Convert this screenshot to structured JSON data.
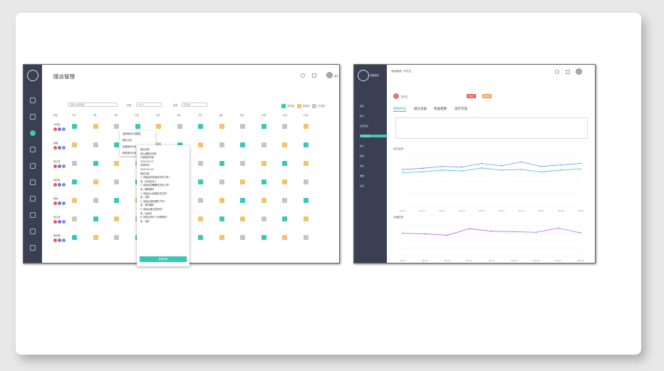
{
  "screen1": {
    "title": "随访管理",
    "search_placeholder": "请输入患者姓名",
    "filter1_label": "时间",
    "filter1_value": "2019",
    "filter2_label": "状态",
    "filter2_value": "已完成",
    "legend": [
      {
        "label": "未开始",
        "color": "#3cc7b3"
      },
      {
        "label": "未完成",
        "color": "#f4c26b"
      },
      {
        "label": "已完成",
        "color": "#c5c5c5"
      }
    ],
    "user": "医生",
    "col_header": "姓名",
    "months": [
      "1月",
      "2月",
      "3月",
      "4月",
      "5月",
      "6月",
      "7月",
      "8月",
      "9月",
      "10月",
      "11月",
      "12月"
    ],
    "patients": [
      "乔佳航",
      "唐媛",
      "唐立新",
      "唐林森",
      "唐媛",
      "唐立新",
      "唐林鹏"
    ],
    "menu": [
      "选择随访计划模板",
      "随访计划",
      "患者随访计划",
      "新增随访计划"
    ],
    "popup": {
      "h1": "随访名称",
      "v1": "冠心病随访问卷",
      "h2": "计划随访时间",
      "v2": "2020-03-12",
      "h3": "完成时间",
      "v3": "2020-02-03",
      "h4": "随访内容",
      "qa": [
        "1. 您最近的饮食情况怎么样?",
        "答：情况还可以",
        "2. 您最近的睡眠情况怎么样?",
        "答：睡得很好",
        "3. 您最近心绞痛发作过吗?",
        "答：没有",
        "4. 您最近按时服药了吗?",
        "答：按时服药",
        "5. 您最近做过复查吗?",
        "答：还没有",
        "6. 您最近有什么不舒服吗?",
        "答：还好"
      ],
      "button": "查看详情"
    }
  },
  "screen2": {
    "app_name": "卓越健康",
    "breadcrumb": "患者管理 / 林先生",
    "patient_name": "林先生",
    "tags": [
      {
        "label": "高血压",
        "color": "#e85a4f"
      },
      {
        "label": "糖尿病",
        "color": "#f0a04b"
      }
    ],
    "menu": [
      "首页",
      "随访",
      "患者列表",
      "待办事项",
      "统计",
      "档案",
      "消息",
      "数据",
      "设置"
    ],
    "tabs": [
      "健康档案",
      "就诊记录",
      "检查结果",
      "治疗方案"
    ],
    "chart1_title": "血压监测",
    "chart2_title": "血糖监测",
    "x_labels": [
      "06-20",
      "06-21",
      "06-22",
      "06-23",
      "06-24",
      "06-25",
      "06-26",
      "06-27",
      "06-28",
      "06-29"
    ]
  },
  "chart_data": [
    {
      "type": "line",
      "title": "血压监测",
      "x": [
        "06-20",
        "06-21",
        "06-22",
        "06-23",
        "06-24",
        "06-25",
        "06-26",
        "06-27",
        "06-28",
        "06-29"
      ],
      "series": [
        {
          "name": "收缩压",
          "values": [
            120,
            124,
            130,
            128,
            140,
            132,
            145,
            130,
            135,
            140
          ]
        },
        {
          "name": "舒张压",
          "values": [
            110,
            112,
            118,
            115,
            125,
            118,
            120,
            112,
            118,
            122
          ]
        }
      ],
      "ylim": [
        0,
        160
      ]
    },
    {
      "type": "line",
      "title": "血糖监测",
      "x": [
        "06-20",
        "06-21",
        "06-22",
        "06-23",
        "06-24",
        "06-25",
        "06-26",
        "06-27",
        "06-28"
      ],
      "series": [
        {
          "name": "血糖",
          "values": [
            7.5,
            7.3,
            6.8,
            9.0,
            8.2,
            8.0,
            7.8,
            9.2,
            7.6
          ]
        }
      ],
      "ylim": [
        0,
        10
      ]
    }
  ],
  "colors": {
    "accent": "#3cc7b3",
    "sidebar": "#3a3f52",
    "line1": "#6c8ef2",
    "line2": "#3cc7b3",
    "line3": "#b469e8"
  }
}
